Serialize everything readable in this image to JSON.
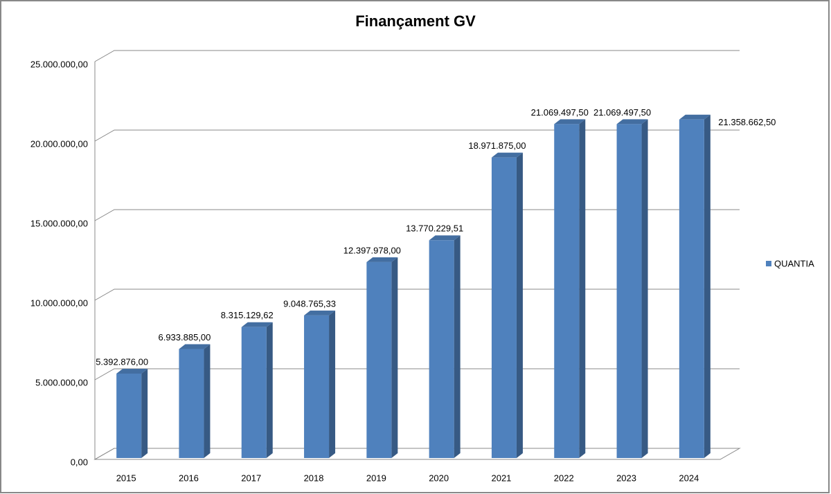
{
  "chart_data": {
    "type": "bar3d",
    "title": "Finançament GV",
    "categories": [
      "2015",
      "2016",
      "2017",
      "2018",
      "2019",
      "2020",
      "2021",
      "2022",
      "2023",
      "2024"
    ],
    "series": [
      {
        "name": "QUANTIA",
        "color": "#4f81bd",
        "values": [
          5392876.0,
          6933885.0,
          8315129.62,
          9048765.33,
          12397978.0,
          13770229.51,
          18971875.0,
          21069497.5,
          21069497.5,
          21358662.5
        ],
        "value_labels": [
          "5.392.876,00",
          "6.933.885,00",
          "8.315.129,62",
          "9.048.765,33",
          "12.397.978,00",
          "13.770.229,51",
          "18.971.875,00",
          "21.069.497,50",
          "21.069.497,50",
          "21.358.662,50"
        ]
      }
    ],
    "ylim": [
      0,
      25000000
    ],
    "yticks": [
      {
        "value": 0,
        "label": "0,00"
      },
      {
        "value": 5000000,
        "label": "5.000.000,00"
      },
      {
        "value": 10000000,
        "label": "10.000.000,00"
      },
      {
        "value": 15000000,
        "label": "15.000.000,00"
      },
      {
        "value": 20000000,
        "label": "20.000.000,00"
      },
      {
        "value": 25000000,
        "label": "25.000.000,00"
      }
    ],
    "grid": true,
    "legend": "right"
  }
}
